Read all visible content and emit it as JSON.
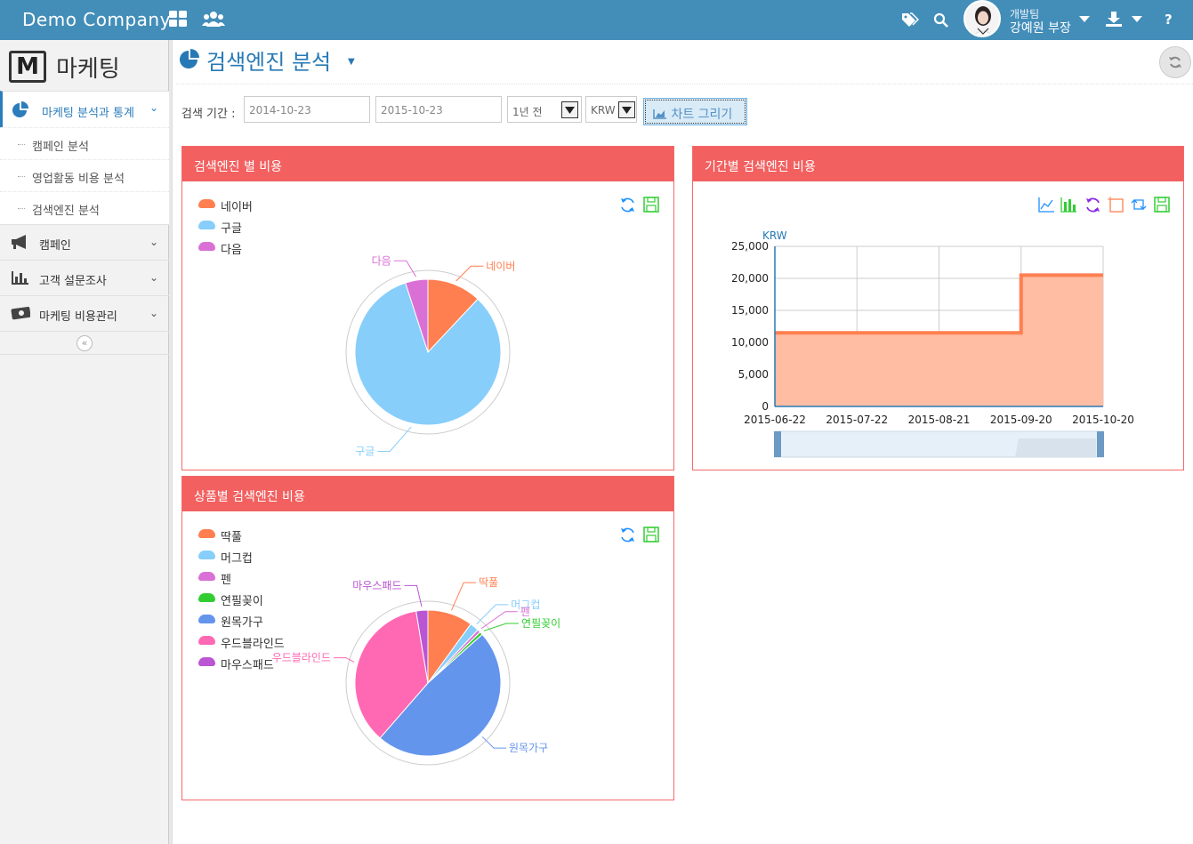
{
  "topbar": {
    "brand": "Demo Company",
    "user_dept": "개발팀",
    "user_name": "강예원 부장",
    "help": "?"
  },
  "sidebar": {
    "logo_letter": "M",
    "logo_text": "마케팅",
    "items": [
      {
        "label": "마케팅 분석과 통계",
        "icon": "pie-chart-icon"
      },
      {
        "label": "캠페인",
        "icon": "bullhorn-icon"
      },
      {
        "label": "고객 설문조사",
        "icon": "bar-chart-icon"
      },
      {
        "label": "마케팅 비용관리",
        "icon": "money-icon"
      }
    ],
    "sub_items": [
      "캠페인 분석",
      "영업활동 비용 분석",
      "검색엔진 분석"
    ],
    "collapse": "«"
  },
  "page": {
    "title": "검색엔진 분석",
    "filter_label": "검색 기간 :",
    "date_from": "2014-10-23",
    "date_to": "2015-10-23",
    "period": "1년 전",
    "currency": "KRW",
    "chart_button": "차트 그리기"
  },
  "panels": {
    "engine_cost": "검색엔진 별 비용",
    "period_cost": "기간별 검색엔진 비용",
    "product_cost": "상품별 검색엔진 비용"
  },
  "colors": {
    "topbar": "#438eb9",
    "panel_header": "#f26060",
    "naver": "#ff7f50",
    "google": "#87cefa",
    "daum": "#da70d6",
    "green": "#32cd32",
    "blue": "#6495ed",
    "pink": "#ff69b4",
    "purple": "#ba55d3"
  },
  "chart_data": [
    {
      "type": "pie",
      "legend": [
        "네이버",
        "구글",
        "다음"
      ],
      "categories": [
        "네이버",
        "구글",
        "다음"
      ],
      "values": [
        12,
        83,
        5
      ],
      "colors": [
        "#ff7f50",
        "#87cefa",
        "#da70d6"
      ],
      "legend_position": "top-left"
    },
    {
      "type": "area",
      "ylabel": "KRW",
      "x": [
        "2015-06-22",
        "2015-07-22",
        "2015-08-21",
        "2015-09-20",
        "2015-10-20"
      ],
      "x_ticks": [
        "2015-06-22",
        "2015-07-22",
        "2015-08-21",
        "2015-09-20",
        "2015-10-20"
      ],
      "y_ticks": [
        "25,000",
        "20,000",
        "15,000",
        "10,000",
        "5,000",
        "0"
      ],
      "ylim": [
        0,
        25000
      ],
      "series": [
        {
          "values": [
            11500,
            11500,
            11500,
            11500,
            20500
          ]
        }
      ],
      "step_date": "2015-09-20",
      "grid": true
    },
    {
      "type": "pie",
      "legend": [
        "딱풀",
        "머그컵",
        "펜",
        "연필꽂이",
        "원목가구",
        "우드블라인드",
        "마우스패드"
      ],
      "categories": [
        "딱풀",
        "머그컵",
        "펜",
        "연필꽂이",
        "원목가구",
        "우드블라인드",
        "마우스패드"
      ],
      "values": [
        10,
        2,
        0.7,
        0.7,
        48,
        36,
        2.6
      ],
      "colors": [
        "#ff7f50",
        "#87cefa",
        "#da70d6",
        "#32cd32",
        "#6495ed",
        "#ff69b4",
        "#ba55d3"
      ],
      "legend_position": "top-left"
    }
  ]
}
